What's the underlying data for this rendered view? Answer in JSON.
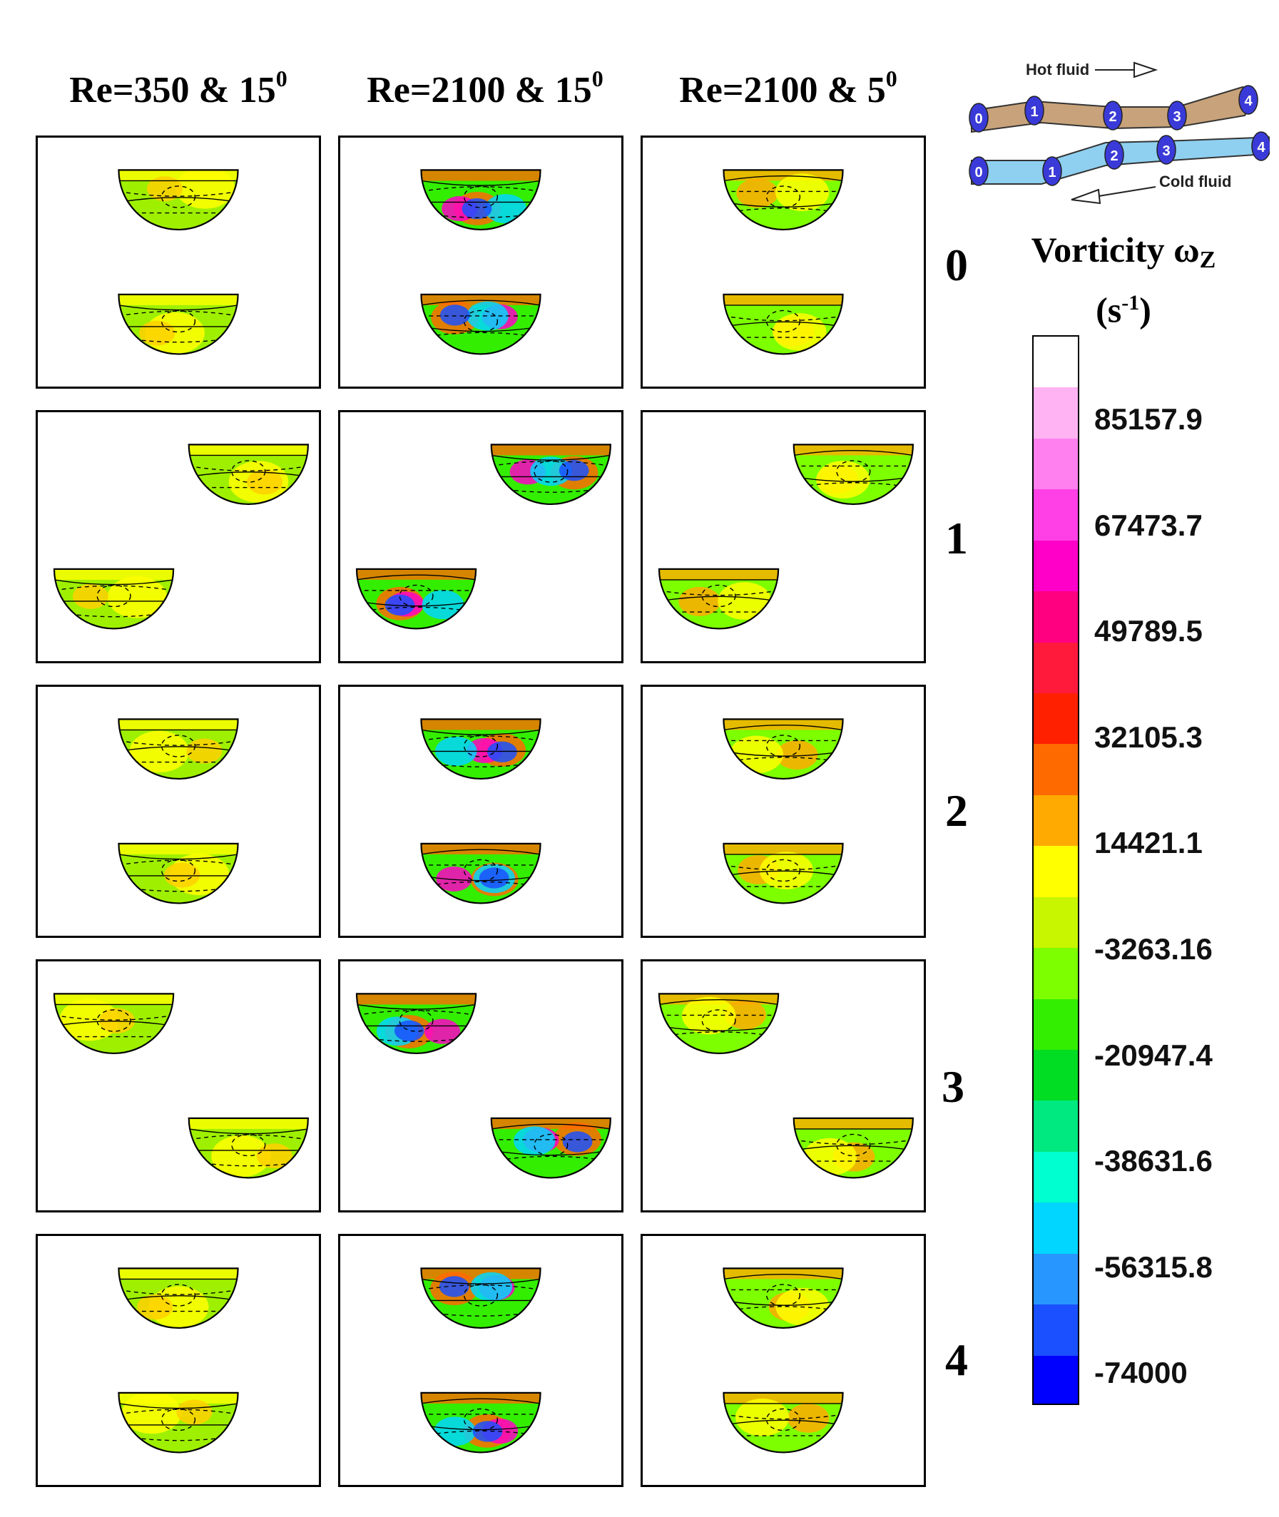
{
  "columns": [
    {
      "label": "Re=350 & 15",
      "sup": "0"
    },
    {
      "label": "Re=2100 & 15",
      "sup": "0"
    },
    {
      "label": "Re=2100 & 5",
      "sup": "0"
    }
  ],
  "rows": [
    "0",
    "1",
    "2",
    "3",
    "4"
  ],
  "legend": {
    "title_main": "Vorticity ω",
    "title_sub": "Z",
    "units_pre": "(s",
    "units_sup": "-1",
    "units_post": ")",
    "ticks": [
      "85157.9",
      "67473.7",
      "49789.5",
      "32105.3",
      "14421.1",
      "-3263.16",
      "-20947.4",
      "-38631.6",
      "-56315.8",
      "-74000"
    ],
    "colors": [
      "#ffffff",
      "#ffb3f2",
      "#ff80ee",
      "#ff40e6",
      "#ff00c8",
      "#ff0080",
      "#ff1a3c",
      "#ff2000",
      "#ff6a00",
      "#ffaa00",
      "#ffff00",
      "#c8f500",
      "#7dff00",
      "#33ee00",
      "#00dd22",
      "#00e880",
      "#00ffd0",
      "#00d6ff",
      "#2896ff",
      "#1a50ff",
      "#0000ff"
    ]
  },
  "schematic": {
    "hot_label": "Hot fluid",
    "cold_label": "Cold fluid",
    "hot_nodes": [
      "0",
      "1",
      "2",
      "3",
      "4"
    ],
    "cold_nodes": [
      "0",
      "1",
      "2",
      "3",
      "4"
    ],
    "hot_color": "#c8a27a",
    "cold_color": "#8fd0f0",
    "node_color": "#3a3ad8"
  }
}
